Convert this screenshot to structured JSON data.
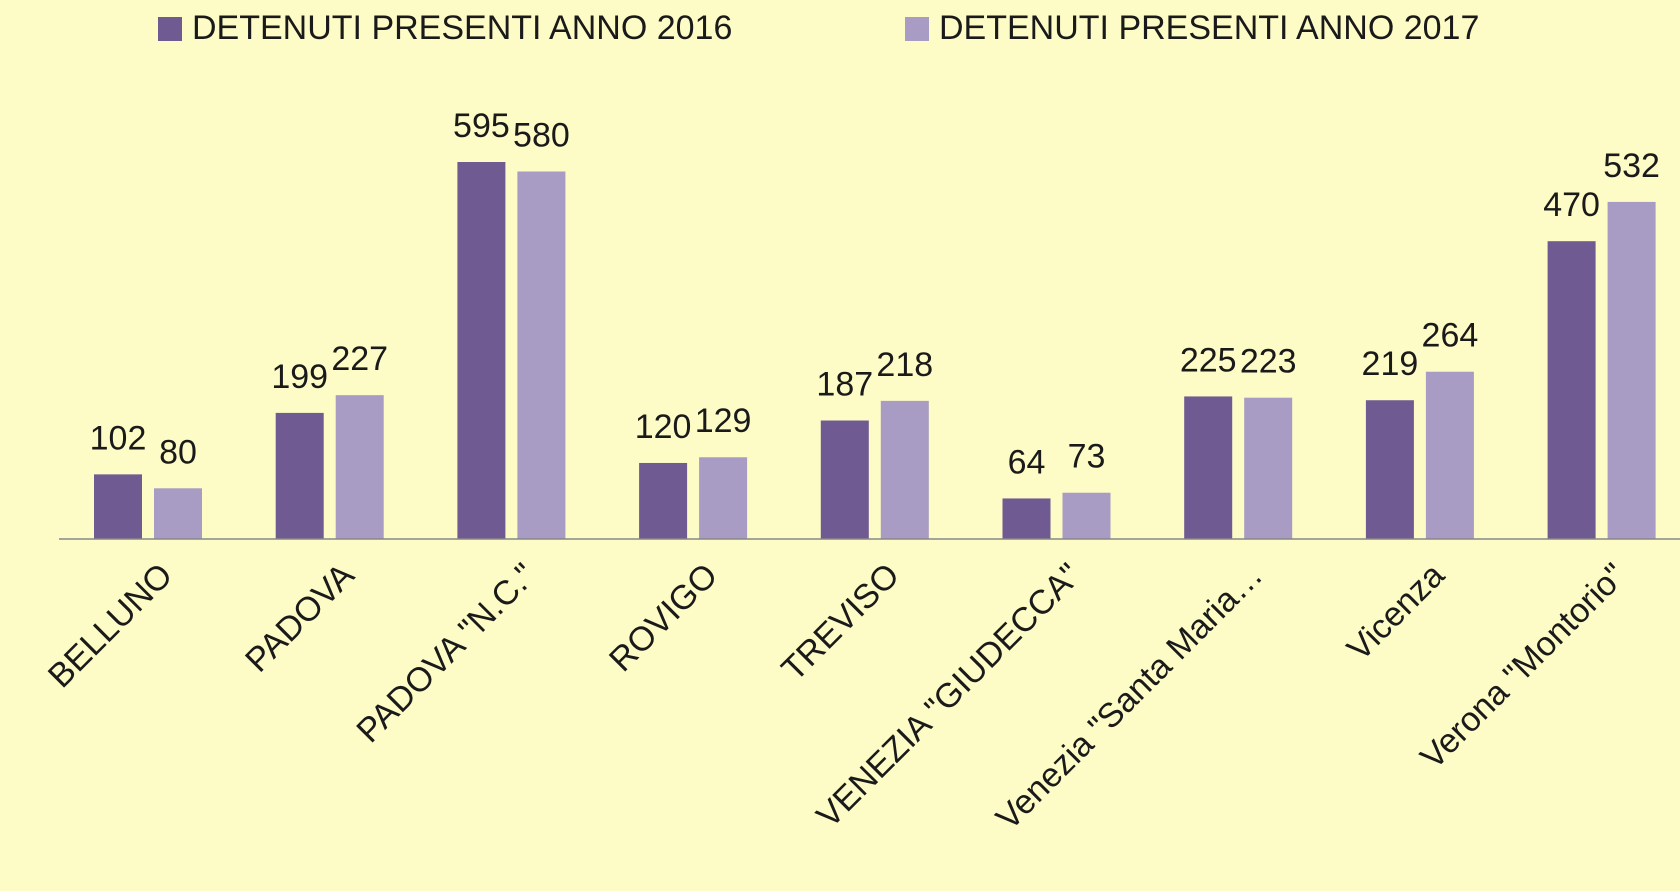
{
  "chart_data": {
    "type": "bar",
    "categories": [
      "BELLUNO",
      "PADOVA",
      "PADOVA \"N.C.\"",
      "ROVIGO",
      "TREVISO",
      "VENEZIA \"GIUDECCA\"",
      "Venezia \"Santa Maria…",
      "Vicenza",
      "Verona \"Montorio\""
    ],
    "series": [
      {
        "name": "DETENUTI PRESENTI ANNO 2016",
        "color": "#6f5a91",
        "values": [
          102,
          199,
          595,
          120,
          187,
          64,
          225,
          219,
          470
        ]
      },
      {
        "name": "DETENUTI PRESENTI ANNO 2017",
        "color": "#a89bc4",
        "values": [
          80,
          227,
          580,
          129,
          218,
          73,
          223,
          264,
          532
        ]
      }
    ],
    "legend": "top"
  }
}
